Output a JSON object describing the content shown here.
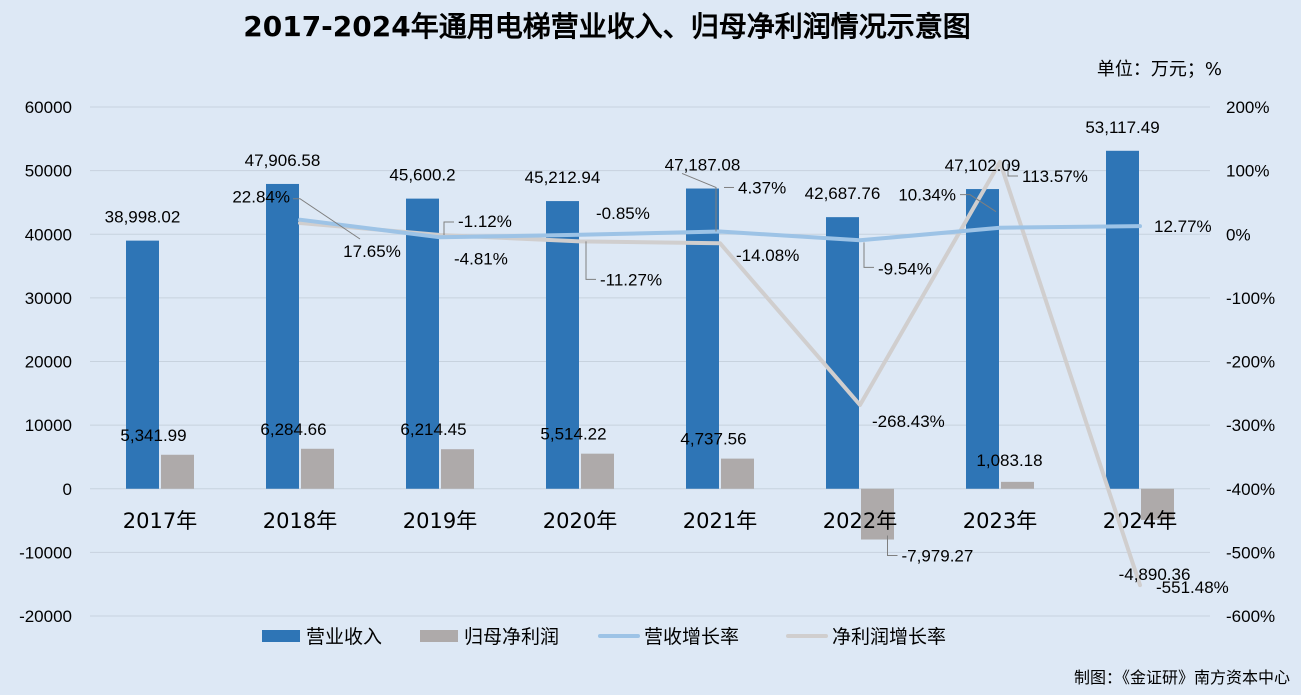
{
  "title": "2017-2024年通用电梯营业收入、归母净利润情况示意图",
  "unit_note": "单位：万元；%",
  "credit": "制图：《金证研》南方资本中心",
  "chart_data": {
    "type": "bar+line",
    "categories": [
      "2017年",
      "2018年",
      "2019年",
      "2020年",
      "2021年",
      "2022年",
      "2023年",
      "2024年"
    ],
    "series": [
      {
        "name": "营业收入",
        "kind": "bar",
        "axis": "left",
        "color": "#2e75b6",
        "values": [
          38998.02,
          47906.58,
          45600.2,
          45212.94,
          47187.08,
          42687.76,
          47102.09,
          53117.49
        ],
        "labels": [
          "38,998.02",
          "47,906.58",
          "45,600.2",
          "45,212.94",
          "47,187.08",
          "42,687.76",
          "47,102.09",
          "53,117.49"
        ]
      },
      {
        "name": "归母净利润",
        "kind": "bar",
        "axis": "left",
        "color": "#aeaaaa",
        "values": [
          5341.99,
          6284.66,
          6214.45,
          5514.22,
          4737.56,
          -7979.27,
          1083.18,
          -4890.36
        ],
        "labels": [
          "5,341.99",
          "6,284.66",
          "6,214.45",
          "5,514.22",
          "4,737.56",
          "-7,979.27",
          "1,083.18",
          "-4,890.36"
        ]
      },
      {
        "name": "营收增长率",
        "kind": "line",
        "axis": "right",
        "color": "#9dc3e6",
        "values": [
          null,
          22.84,
          -4.81,
          -0.85,
          4.37,
          -9.54,
          10.34,
          12.77
        ],
        "labels": [
          "",
          "22.84%",
          "-4.81%",
          "-0.85%",
          "4.37%",
          "-9.54%",
          "10.34%",
          "12.77%"
        ]
      },
      {
        "name": "净利润增长率",
        "kind": "line",
        "axis": "right",
        "color": "#d0cece",
        "values": [
          null,
          17.65,
          -1.12,
          -11.27,
          -14.08,
          -268.43,
          113.57,
          -551.48
        ],
        "labels": [
          "",
          "17.65%",
          "-1.12%",
          "-11.27%",
          "-14.08%",
          "-268.43%",
          "113.57%",
          "-551.48%"
        ]
      }
    ],
    "left_axis": {
      "min": -20000,
      "max": 60000,
      "step": 10000,
      "ticks": [
        "60000",
        "50000",
        "40000",
        "30000",
        "20000",
        "10000",
        "0",
        "-10000",
        "-20000"
      ]
    },
    "right_axis": {
      "min": -600,
      "max": 200,
      "step": 100,
      "ticks": [
        "200%",
        "100%",
        "0%",
        "-100%",
        "-200%",
        "-300%",
        "-400%",
        "-500%",
        "-600%"
      ]
    },
    "grid": true,
    "legend_position": "bottom"
  }
}
